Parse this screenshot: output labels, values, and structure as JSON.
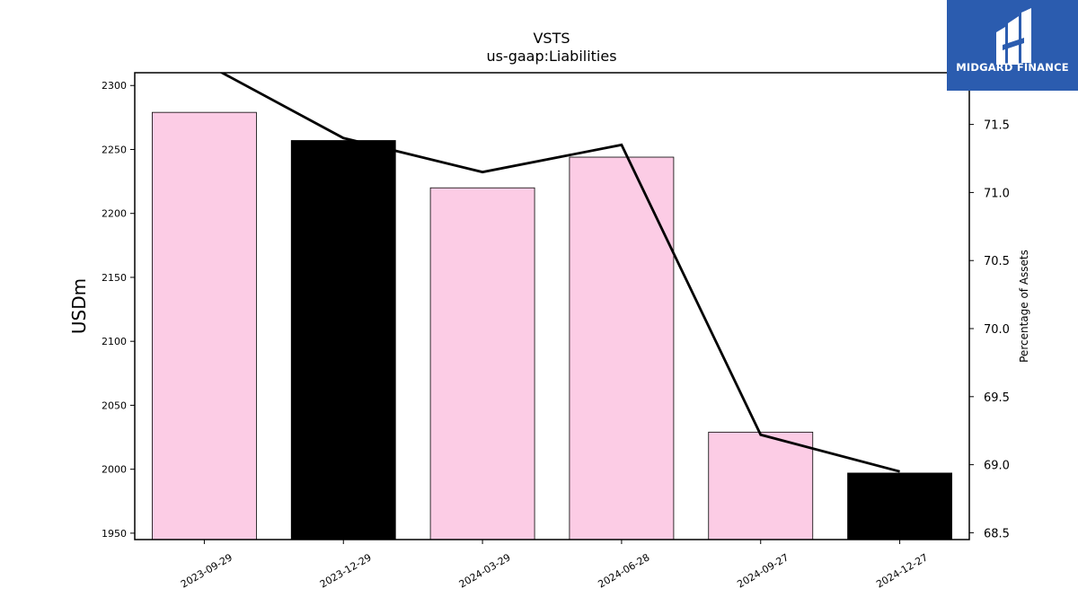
{
  "logo": {
    "text": "MIDGARD FINANCE",
    "bg_color": "#2b5caf"
  },
  "chart_data": {
    "type": "bar",
    "title": "VSTS",
    "subtitle": "us-gaap:Liabilities",
    "ylabel": "USDm",
    "y2label": "Percentage of Assets",
    "categories": [
      "2023-09-29",
      "2023-12-29",
      "2024-03-29",
      "2024-06-28",
      "2024-09-27",
      "2024-12-27"
    ],
    "series": [
      {
        "values": [
          2279,
          2257,
          2220,
          2244,
          2029,
          1997
        ],
        "colors": [
          "#fccce5",
          "#000000",
          "#fccce5",
          "#fccce5",
          "#fccce5",
          "#000000"
        ],
        "axis": "left"
      },
      {
        "type": "line",
        "values": [
          71.95,
          71.4,
          71.15,
          71.35,
          69.22,
          68.95
        ],
        "color": "#000000",
        "axis": "right"
      }
    ],
    "ylim": [
      1945,
      2310
    ],
    "y2lim": [
      68.45,
      71.88
    ],
    "yticks": [
      1950,
      2000,
      2050,
      2100,
      2150,
      2200,
      2250,
      2300
    ],
    "y2ticks": [
      "68.5",
      "69.0",
      "69.5",
      "70.0",
      "70.5",
      "71.0",
      "71.5"
    ],
    "grid": false
  }
}
